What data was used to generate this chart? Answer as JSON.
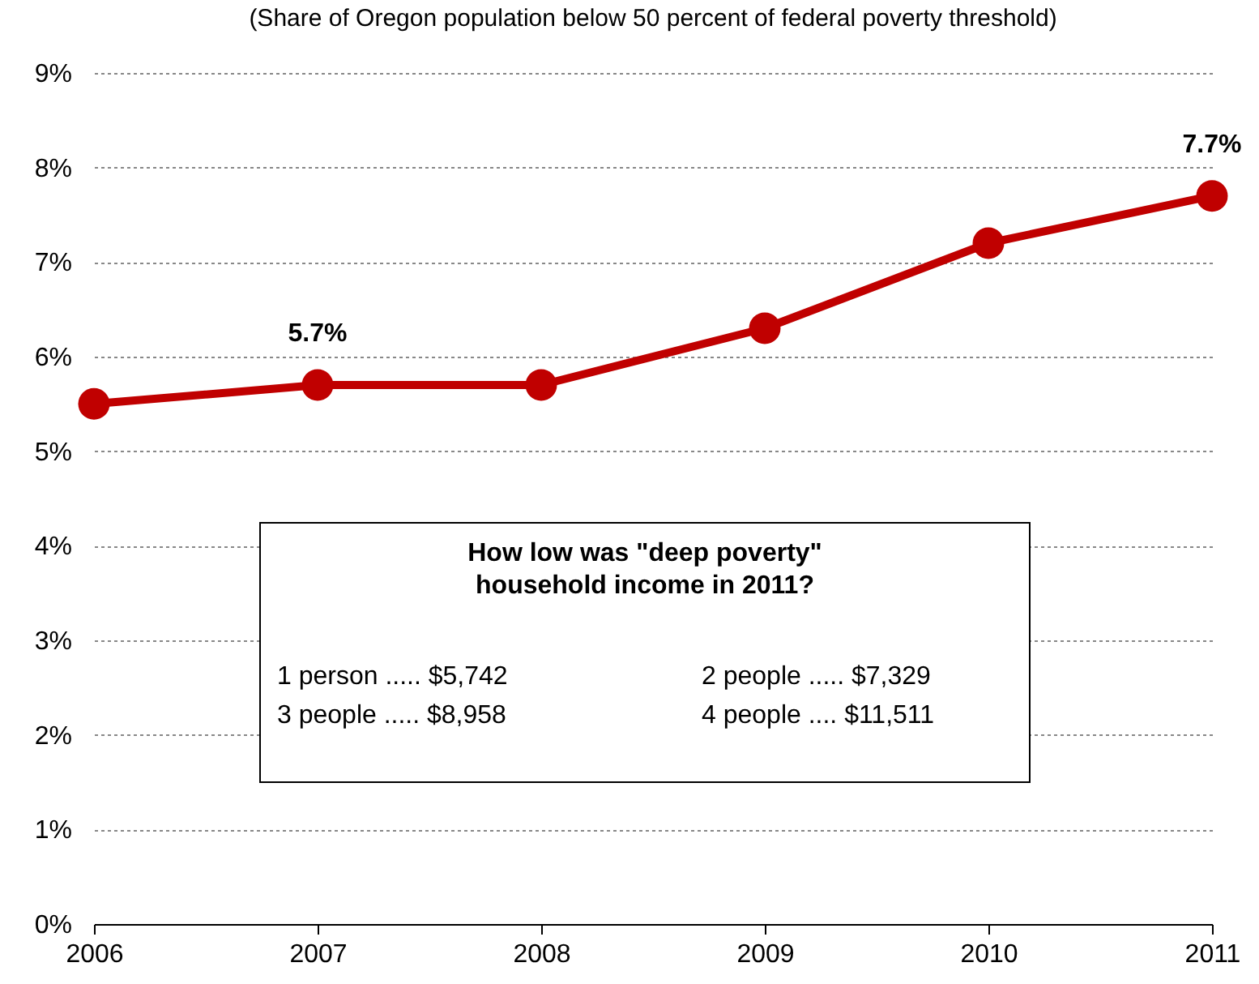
{
  "chart_data": {
    "type": "line",
    "title": "(Share of Oregon population below 50 percent of federal poverty threshold)",
    "x": [
      2006,
      2007,
      2008,
      2009,
      2010,
      2011
    ],
    "series": [
      {
        "color": "#c00000",
        "values": [
          5.5,
          5.7,
          5.7,
          6.3,
          7.2,
          7.7
        ],
        "value_labels": [
          null,
          "5.7%",
          null,
          null,
          null,
          "7.7%"
        ]
      }
    ],
    "xlim": [
      2006,
      2011
    ],
    "xticks": [
      2006,
      2007,
      2008,
      2009,
      2010,
      2011
    ],
    "ylim": [
      0,
      9
    ],
    "yticks": [
      {
        "value": 0,
        "label": "0%"
      },
      {
        "value": 1,
        "label": "1%"
      },
      {
        "value": 2,
        "label": "2%"
      },
      {
        "value": 3,
        "label": "3%"
      },
      {
        "value": 4,
        "label": "4%"
      },
      {
        "value": 5,
        "label": "5%"
      },
      {
        "value": 6,
        "label": "6%"
      },
      {
        "value": 7,
        "label": "7%"
      },
      {
        "value": 8,
        "label": "8%"
      },
      {
        "value": 9,
        "label": "9%"
      }
    ],
    "grid": "y",
    "marker": "circle",
    "line_style": "solid",
    "annotations": [
      "How low was \"deep poverty\" household income in 2011?",
      "1 person ..... $5,742",
      "2 people ..... $7,329",
      "3 people ..... $8,958",
      "4 people .... $11,511"
    ]
  }
}
